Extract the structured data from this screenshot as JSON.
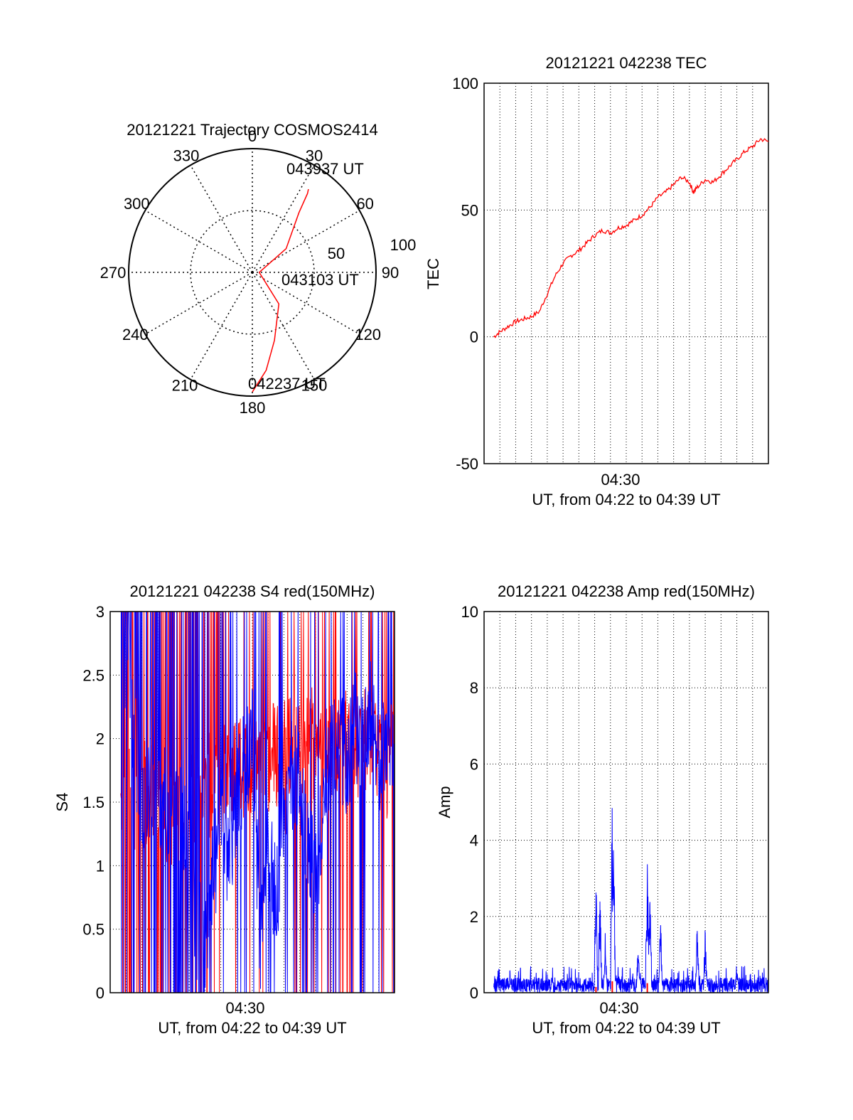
{
  "chart_data": [
    {
      "type": "polar",
      "title": "20121221 Trajectory COSMOS2414",
      "azimuth_labels": [
        "0",
        "30",
        "60",
        "90",
        "120",
        "150",
        "180",
        "210",
        "240",
        "270",
        "300",
        "330"
      ],
      "radial_labels": [
        "50",
        "100"
      ],
      "trajectory": {
        "color": "#ff0000",
        "points": [
          {
            "az": 180,
            "elev": 3
          },
          {
            "az": 172,
            "elev": 18
          },
          {
            "az": 162,
            "elev": 38
          },
          {
            "az": 140,
            "elev": 60
          },
          {
            "az": 90,
            "elev": 85
          },
          {
            "az": 55,
            "elev": 60
          },
          {
            "az": 38,
            "elev": 35
          },
          {
            "az": 35,
            "elev": 20
          },
          {
            "az": 34,
            "elev": 17
          }
        ]
      },
      "time_labels": [
        {
          "text": "043937 UT",
          "az": 34,
          "elev": 17
        },
        {
          "text": "043103 UT",
          "az": 90,
          "elev": 85
        },
        {
          "text": "042237 UT",
          "az": 180,
          "elev": 3
        }
      ]
    },
    {
      "type": "line",
      "title": "20121221 042238 TEC",
      "xlabel": "UT, from 04:22 to 04:39 UT",
      "ylabel": "TEC",
      "xlim": [
        "04:22:00",
        "04:40:00"
      ],
      "x_tick_labels": [
        "04:30"
      ],
      "ylim": [
        -50,
        100
      ],
      "y_tick_labels": [
        "-50",
        "0",
        "50",
        "100"
      ],
      "grid": true,
      "series": [
        {
          "color": "#ff0000",
          "points": [
            [
              "04:22:37",
              0
            ],
            [
              "04:23:00",
              2
            ],
            [
              "04:23:30",
              4
            ],
            [
              "04:24:00",
              6
            ],
            [
              "04:24:30",
              7
            ],
            [
              "04:25:00",
              8
            ],
            [
              "04:25:30",
              10
            ],
            [
              "04:26:00",
              17
            ],
            [
              "04:26:30",
              24
            ],
            [
              "04:27:00",
              29
            ],
            [
              "04:27:30",
              32
            ],
            [
              "04:28:00",
              34
            ],
            [
              "04:28:30",
              37
            ],
            [
              "04:29:00",
              40
            ],
            [
              "04:29:30",
              42
            ],
            [
              "04:30:00",
              41
            ],
            [
              "04:30:30",
              43
            ],
            [
              "04:31:00",
              44
            ],
            [
              "04:31:30",
              46
            ],
            [
              "04:32:00",
              48
            ],
            [
              "04:32:30",
              51
            ],
            [
              "04:33:00",
              55
            ],
            [
              "04:33:30",
              57
            ],
            [
              "04:34:00",
              60
            ],
            [
              "04:34:30",
              63
            ],
            [
              "04:35:00",
              61
            ],
            [
              "04:35:15",
              57
            ],
            [
              "04:35:30",
              59
            ],
            [
              "04:36:00",
              62
            ],
            [
              "04:36:30",
              61
            ],
            [
              "04:37:00",
              64
            ],
            [
              "04:37:30",
              67
            ],
            [
              "04:38:00",
              70
            ],
            [
              "04:38:30",
              73
            ],
            [
              "04:39:00",
              75
            ],
            [
              "04:39:30",
              78
            ],
            [
              "04:40:00",
              77
            ]
          ]
        }
      ]
    },
    {
      "type": "line",
      "title": "20121221 042238 S4 red(150MHz)",
      "xlabel": "UT, from 04:22 to 04:39 UT",
      "ylabel": "S4",
      "xlim": [
        "04:22:00",
        "04:40:00"
      ],
      "x_tick_labels": [
        "04:30"
      ],
      "ylim": [
        0,
        3
      ],
      "y_tick_labels": [
        "0",
        "0.5",
        "1",
        "1.5",
        "2",
        "2.5",
        "3"
      ],
      "grid": true,
      "series": [
        {
          "color": "#0000ff",
          "points": [
            [
              "04:22:40",
              3
            ],
            [
              "04:24:00",
              1.5
            ],
            [
              "04:26:00",
              1.5
            ],
            [
              "04:27:00",
              1.2
            ],
            [
              "04:27:30",
              0.5
            ],
            [
              "04:28:00",
              0.4
            ],
            [
              "04:28:30",
              0.9
            ],
            [
              "04:29:00",
              1.3
            ],
            [
              "04:29:30",
              1.0
            ],
            [
              "04:30:00",
              1.5
            ],
            [
              "04:30:30",
              1.8
            ],
            [
              "04:31:00",
              2.0
            ],
            [
              "04:31:30",
              0.4
            ],
            [
              "04:32:00",
              1.2
            ],
            [
              "04:32:30",
              0.7
            ],
            [
              "04:33:00",
              1.5
            ],
            [
              "04:33:30",
              1.7
            ],
            [
              "04:34:00",
              1.6
            ],
            [
              "04:34:30",
              1.2
            ],
            [
              "04:35:00",
              0.8
            ],
            [
              "04:35:30",
              1.6
            ],
            [
              "04:36:00",
              1.9
            ],
            [
              "04:36:30",
              2.0
            ],
            [
              "04:37:00",
              1.8
            ],
            [
              "04:37:30",
              2.1
            ],
            [
              "04:38:00",
              1.9
            ],
            [
              "04:38:30",
              2.2
            ],
            [
              "04:39:00",
              1.8
            ],
            [
              "04:39:30",
              2.0
            ]
          ]
        },
        {
          "color": "#ff0000",
          "points": [
            [
              "04:22:40",
              1.5
            ],
            [
              "04:24:00",
              1.6
            ],
            [
              "04:26:00",
              1.4
            ],
            [
              "04:28:00",
              1.6
            ],
            [
              "04:30:00",
              1.7
            ],
            [
              "04:32:00",
              1.8
            ],
            [
              "04:34:00",
              2.0
            ],
            [
              "04:36:00",
              1.9
            ],
            [
              "04:38:00",
              2.0
            ],
            [
              "04:39:30",
              1.8
            ]
          ]
        }
      ]
    },
    {
      "type": "line",
      "title": "20121221 042238 Amp red(150MHz)",
      "xlabel": "UT, from 04:22 to 04:39 UT",
      "ylabel": "Amp",
      "xlim": [
        "04:22:00",
        "04:40:00"
      ],
      "x_tick_labels": [
        "04:30"
      ],
      "ylim": [
        0,
        10
      ],
      "y_tick_labels": [
        "0",
        "2",
        "4",
        "6",
        "8",
        "10"
      ],
      "grid": true,
      "series": [
        {
          "color": "#0000ff",
          "baseline": 0.25,
          "spikes": [
            [
              "04:29:05",
              3.5
            ],
            [
              "04:29:20",
              3.0
            ],
            [
              "04:29:40",
              1.8
            ],
            [
              "04:30:07",
              6.2
            ],
            [
              "04:30:12",
              4.4
            ],
            [
              "04:31:45",
              1.5
            ],
            [
              "04:32:20",
              3.9
            ],
            [
              "04:32:30",
              3.3
            ],
            [
              "04:33:10",
              2.2
            ],
            [
              "04:35:30",
              2.1
            ],
            [
              "04:36:00",
              1.8
            ],
            [
              "04:38:00",
              0.7
            ]
          ]
        },
        {
          "color": "#ff0000",
          "spikes": [
            [
              "04:29:05",
              0.15
            ],
            [
              "04:30:07",
              0.3
            ],
            [
              "04:32:20",
              0.25
            ]
          ]
        }
      ]
    }
  ]
}
